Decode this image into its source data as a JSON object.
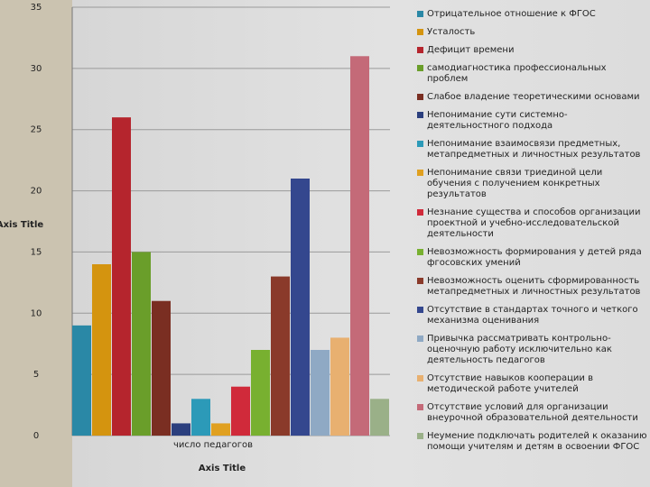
{
  "chart_data": {
    "type": "bar",
    "categories": [
      "число педагогов"
    ],
    "x_label": "Axis Title",
    "y_label": "Axis Title",
    "ylim": [
      0,
      35
    ],
    "yticks": [
      0,
      5,
      10,
      15,
      20,
      25,
      30,
      35
    ],
    "grid": true,
    "series": [
      {
        "name": "Отрицательное отношение к ФГОС",
        "color": "#2a88a6",
        "values": [
          9
        ]
      },
      {
        "name": "Усталость",
        "color": "#d4940f",
        "values": [
          14
        ]
      },
      {
        "name": "Дефицит времени",
        "color": "#b5252d",
        "values": [
          26
        ]
      },
      {
        "name": "самодиагностика профессиональных проблем",
        "color": "#6a9e2a",
        "values": [
          15
        ]
      },
      {
        "name": "Слабое владение теоретическими основами",
        "color": "#7a2e22",
        "values": [
          11
        ]
      },
      {
        "name": "Непонимание сути системно-деятельностного подхода",
        "color": "#2b3f7e",
        "values": [
          1
        ]
      },
      {
        "name": "Непонимание взаимосвязи предметных, метапредметных и личностных результатов",
        "color": "#2c9ab8",
        "values": [
          3
        ]
      },
      {
        "name": "Непонимание связи триединой цели обучения с получением конкретных результатов",
        "color": "#e0a020",
        "values": [
          1
        ]
      },
      {
        "name": "Незнание  существа и способов организации проектной и учебно-исследовательской деятельности",
        "color": "#d02a3a",
        "values": [
          4
        ]
      },
      {
        "name": "Невозможность формирования у детей ряда фгосовских умений",
        "color": "#78b030",
        "values": [
          7
        ]
      },
      {
        "name": "Невозможность оценить сформированность метапредметных и личностных результатов",
        "color": "#8a3a2a",
        "values": [
          13
        ]
      },
      {
        "name": "Отсутствие в стандартах точного и четкого механизма оценивания",
        "color": "#34478e",
        "values": [
          21
        ]
      },
      {
        "name": "Привычка рассматривать контрольно-оценочную работу исключительно как деятельность педагогов",
        "color": "#8fa9c4",
        "values": [
          7
        ]
      },
      {
        "name": "Отсутствие навыков кооперации в методической работе учителей",
        "color": "#e8b070",
        "values": [
          8
        ]
      },
      {
        "name": "Отсутствие условий для организации внеурочной образовательной деятельности",
        "color": "#c46a78",
        "values": [
          31
        ]
      },
      {
        "name": "Неумение подключать родителей к оказанию помощи учителям и детям в освоении ФГОС",
        "color": "#9ab088",
        "values": [
          3
        ]
      }
    ]
  }
}
